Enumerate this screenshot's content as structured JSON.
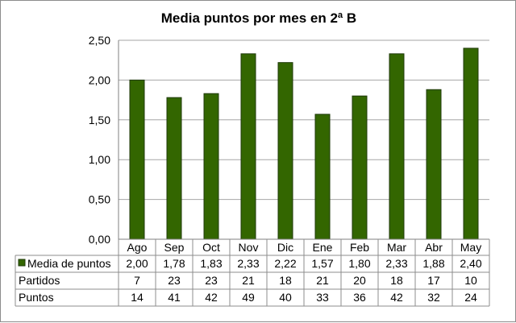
{
  "chart_data": {
    "type": "bar",
    "title": "Media puntos por mes en 2ª B",
    "xlabel": "",
    "ylabel": "",
    "ylim": [
      0,
      2.5
    ],
    "yticks": [
      "0,00",
      "0,50",
      "1,00",
      "1,50",
      "2,00",
      "2,50"
    ],
    "categories": [
      "Ago",
      "Sep",
      "Oct",
      "Nov",
      "Dic",
      "Ene",
      "Feb",
      "Mar",
      "Abr",
      "May"
    ],
    "series": [
      {
        "name": "Media de puntos",
        "values": [
          2.0,
          1.78,
          1.83,
          2.33,
          2.22,
          1.57,
          1.8,
          2.33,
          1.88,
          2.4
        ],
        "labels": [
          "2,00",
          "1,78",
          "1,83",
          "2,33",
          "2,22",
          "1,57",
          "1,80",
          "2,33",
          "1,88",
          "2,40"
        ],
        "color": "#336600"
      }
    ],
    "data_table": {
      "rows": [
        {
          "name": "Media de puntos",
          "cells": [
            "2,00",
            "1,78",
            "1,83",
            "2,33",
            "2,22",
            "1,57",
            "1,80",
            "2,33",
            "1,88",
            "2,40"
          ],
          "legend_key": true
        },
        {
          "name": "Partidos",
          "cells": [
            "7",
            "23",
            "23",
            "21",
            "18",
            "21",
            "20",
            "18",
            "17",
            "10"
          ],
          "legend_key": false
        },
        {
          "name": "Puntos",
          "cells": [
            "14",
            "41",
            "42",
            "49",
            "40",
            "33",
            "36",
            "42",
            "32",
            "24"
          ],
          "legend_key": false
        }
      ]
    },
    "grid": true,
    "legend": "data-table"
  }
}
